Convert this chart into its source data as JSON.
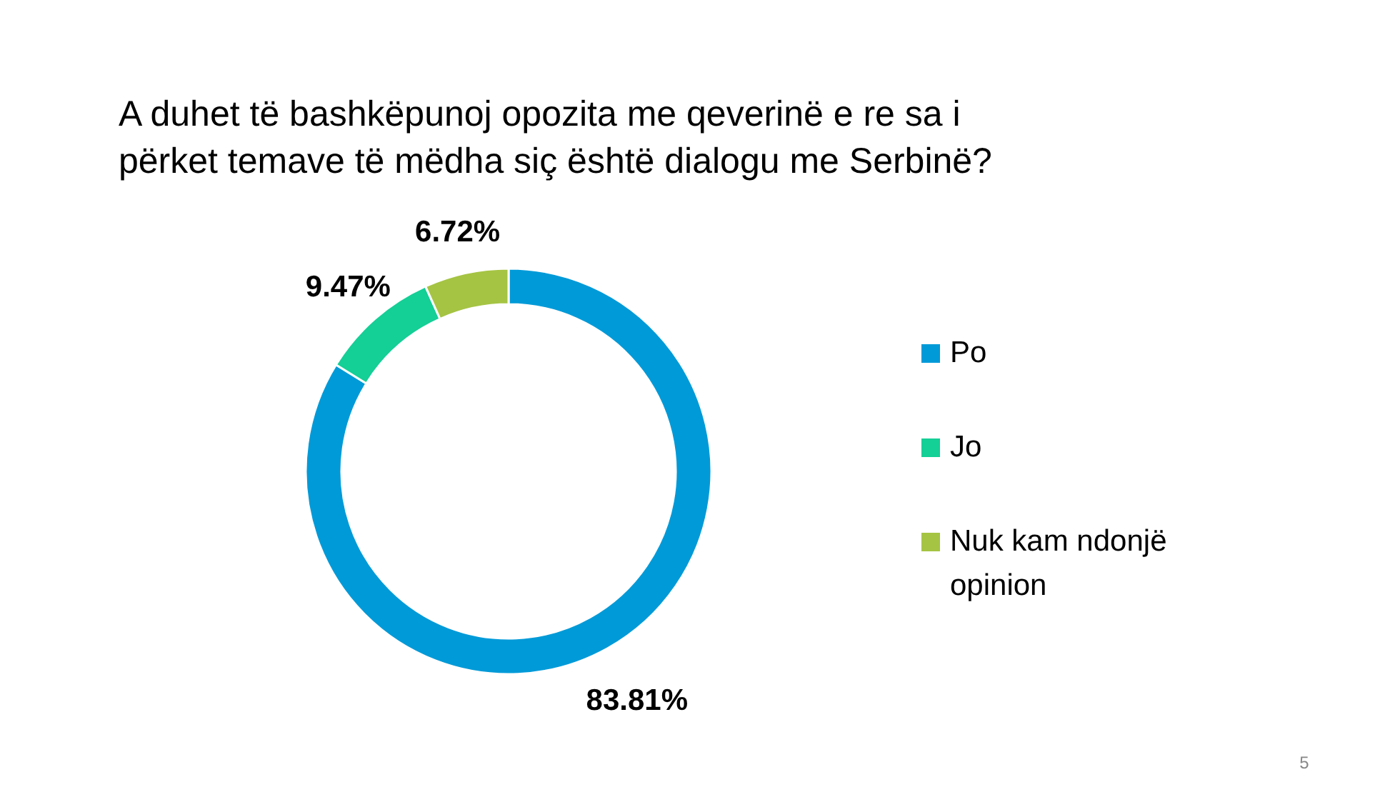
{
  "chart_data": {
    "type": "donut",
    "title": "A duhet të bashkëpunoj opozita me qeverinë e re sa i përket temave të mëdha siç është dialogu me Serbinë?",
    "categories": [
      "Po",
      "Jo",
      "Nuk kam ndonjë opinion"
    ],
    "values": [
      83.81,
      9.47,
      6.72
    ],
    "value_labels": [
      "83.81%",
      "9.47%",
      "6.72%"
    ],
    "colors": [
      "#009ad8",
      "#14cf96",
      "#a5c443"
    ],
    "legend": "right",
    "annotations": [
      "5"
    ]
  }
}
